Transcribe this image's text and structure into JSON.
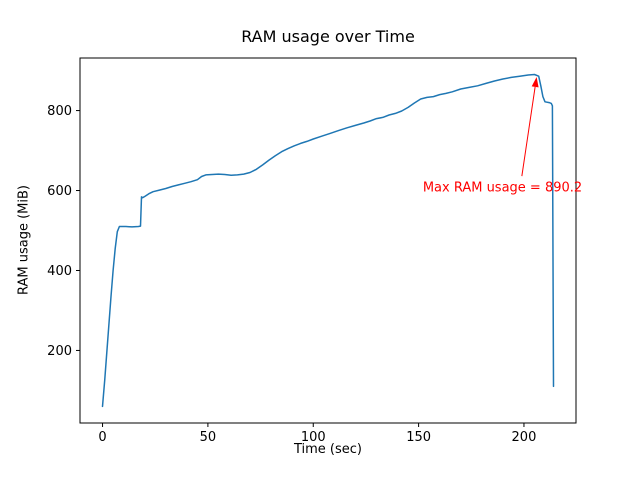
{
  "figure_title": "RAM usage over Time",
  "chart_data": {
    "type": "line",
    "title": "RAM usage over Time",
    "xlabel": "Time (sec)",
    "ylabel": "RAM usage (MiB)",
    "xlim": [
      -10.7,
      224.7
    ],
    "ylim": [
      18.5,
      931.5
    ],
    "xticks": [
      0,
      50,
      100,
      150,
      200
    ],
    "yticks": [
      200,
      400,
      600,
      800
    ],
    "grid": false,
    "legend": "none",
    "line_color": "#1f77b4",
    "series": [
      {
        "name": "RAM usage",
        "points": [
          [
            0,
            60
          ],
          [
            1,
            125
          ],
          [
            2,
            195
          ],
          [
            3,
            265
          ],
          [
            4,
            335
          ],
          [
            5,
            400
          ],
          [
            6,
            455
          ],
          [
            7,
            497
          ],
          [
            8,
            510
          ],
          [
            11,
            510
          ],
          [
            14,
            509
          ],
          [
            17,
            510
          ],
          [
            18,
            511
          ],
          [
            18.5,
            584
          ],
          [
            19,
            582
          ],
          [
            20,
            585
          ],
          [
            22,
            592
          ],
          [
            24,
            597
          ],
          [
            27,
            601
          ],
          [
            30,
            605
          ],
          [
            33,
            610
          ],
          [
            36,
            614
          ],
          [
            39,
            618
          ],
          [
            42,
            622
          ],
          [
            45,
            627
          ],
          [
            47,
            635
          ],
          [
            49,
            639
          ],
          [
            52,
            640
          ],
          [
            55,
            641
          ],
          [
            58,
            640
          ],
          [
            61,
            638
          ],
          [
            64,
            639
          ],
          [
            67,
            641
          ],
          [
            70,
            645
          ],
          [
            73,
            653
          ],
          [
            76,
            664
          ],
          [
            79,
            676
          ],
          [
            82,
            687
          ],
          [
            85,
            697
          ],
          [
            88,
            705
          ],
          [
            91,
            712
          ],
          [
            94,
            718
          ],
          [
            97,
            723
          ],
          [
            100,
            729
          ],
          [
            104,
            736
          ],
          [
            108,
            743
          ],
          [
            112,
            750
          ],
          [
            116,
            757
          ],
          [
            120,
            763
          ],
          [
            124,
            769
          ],
          [
            127,
            774
          ],
          [
            130,
            780
          ],
          [
            133,
            783
          ],
          [
            136,
            789
          ],
          [
            139,
            793
          ],
          [
            142,
            799
          ],
          [
            145,
            808
          ],
          [
            148,
            819
          ],
          [
            151,
            829
          ],
          [
            154,
            833
          ],
          [
            157,
            835
          ],
          [
            160,
            840
          ],
          [
            163,
            843
          ],
          [
            166,
            847
          ],
          [
            170,
            854
          ],
          [
            174,
            858
          ],
          [
            178,
            862
          ],
          [
            182,
            868
          ],
          [
            186,
            874
          ],
          [
            190,
            879
          ],
          [
            194,
            883
          ],
          [
            198,
            886
          ],
          [
            202,
            889
          ],
          [
            205,
            890.2
          ],
          [
            207,
            886
          ],
          [
            208,
            862
          ],
          [
            209,
            835
          ],
          [
            210,
            822
          ],
          [
            212,
            820
          ],
          [
            213,
            818
          ],
          [
            213.5,
            812
          ],
          [
            214,
            110
          ]
        ]
      }
    ],
    "annotation": {
      "text": "Max RAM usage = 890.2",
      "color": "#ff0000",
      "text_xy": [
        152,
        598
      ],
      "arrow_from": [
        199,
        636
      ],
      "arrow_to": [
        206,
        884
      ],
      "max_value": 890.2
    }
  }
}
